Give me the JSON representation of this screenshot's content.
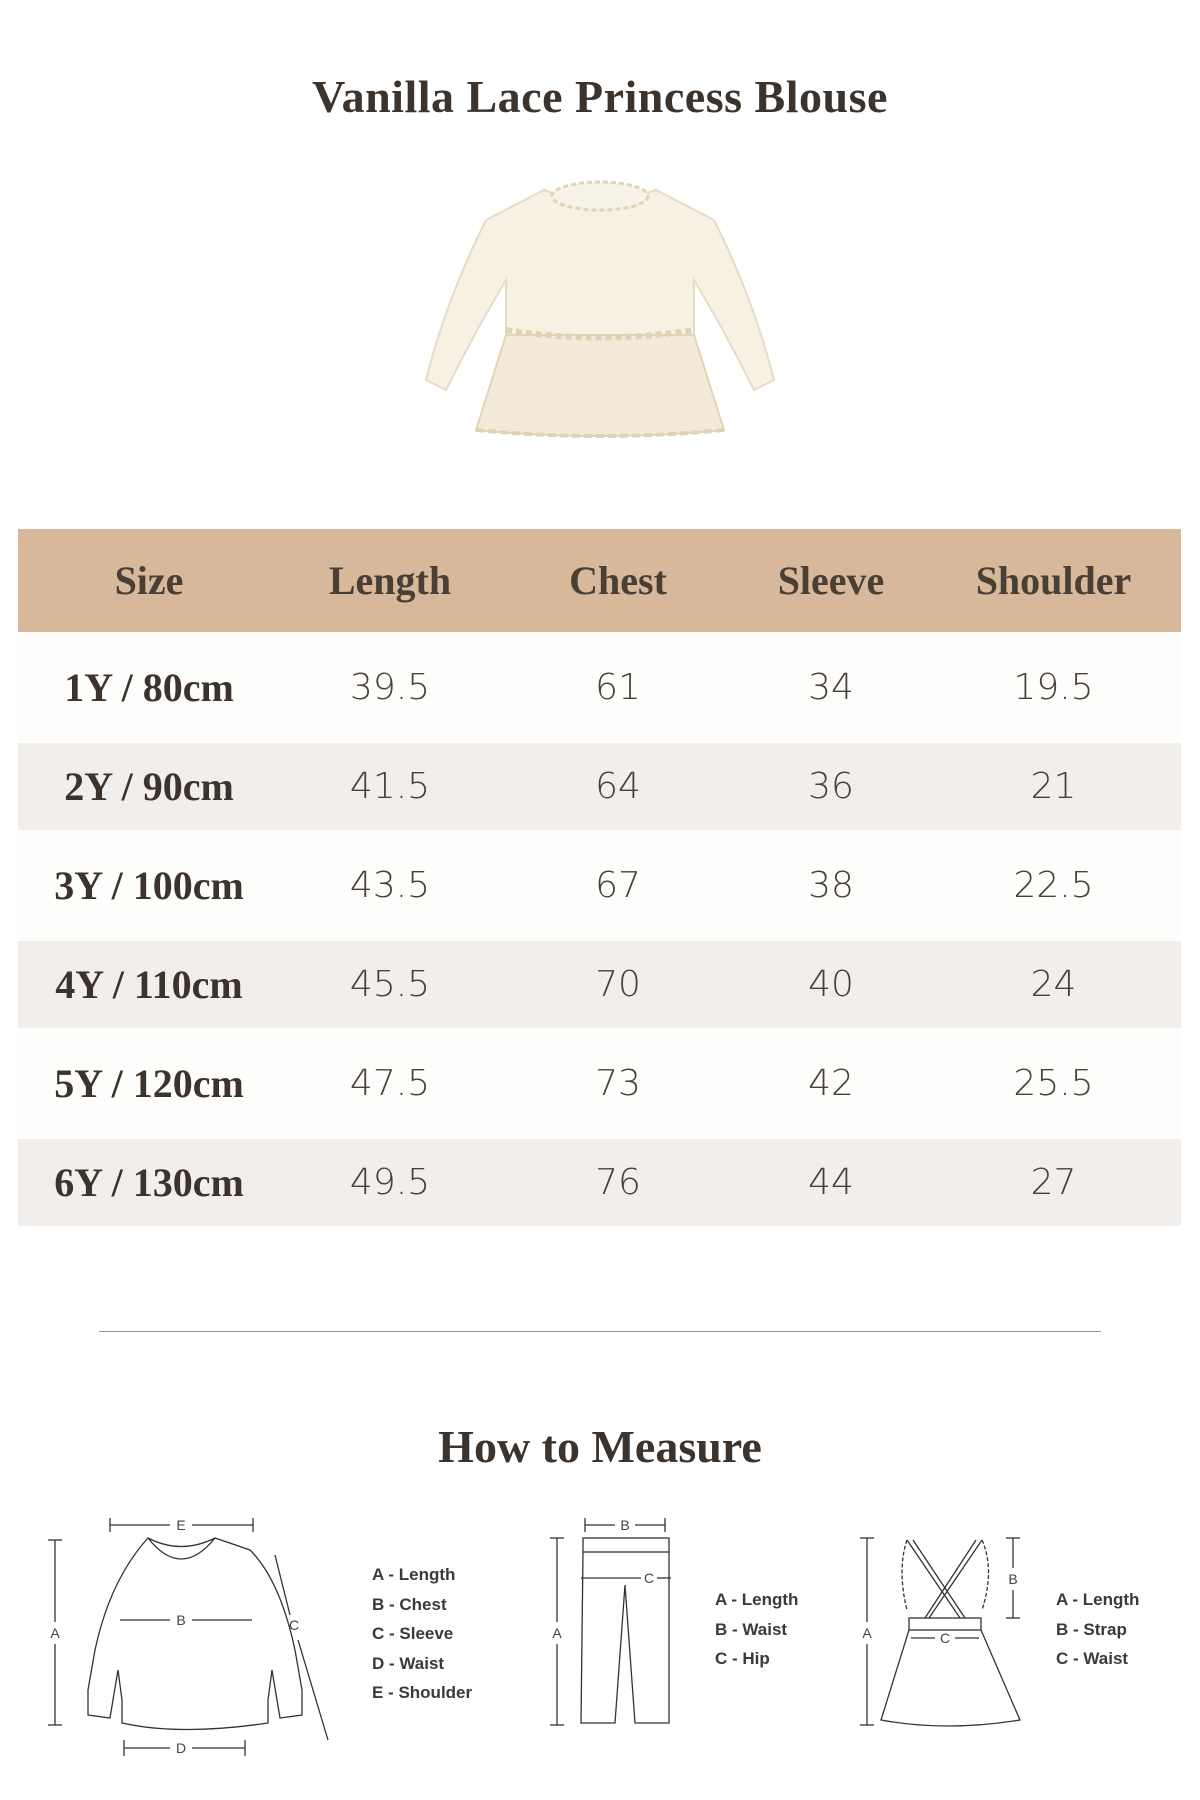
{
  "title": "Vanilla Lace Princess Blouse",
  "colors": {
    "header_bg": "#d7b89b",
    "row_alt": "#f1eeeb",
    "text": "#3b332c"
  },
  "table": {
    "headers": [
      "Size",
      "Length",
      "Chest",
      "Sleeve",
      "Shoulder"
    ],
    "rows": [
      [
        "1Y / 80cm",
        "39.5",
        "61",
        "34",
        "19.5"
      ],
      [
        "2Y / 90cm",
        "41.5",
        "64",
        "36",
        "21"
      ],
      [
        "3Y / 100cm",
        "43.5",
        "67",
        "38",
        "22.5"
      ],
      [
        "4Y / 110cm",
        "45.5",
        "70",
        "40",
        "24"
      ],
      [
        "5Y / 120cm",
        "47.5",
        "73",
        "42",
        "25.5"
      ],
      [
        "6Y / 130cm",
        "49.5",
        "76",
        "44",
        "27"
      ]
    ]
  },
  "how_to_measure": {
    "title": "How to Measure",
    "top": {
      "labels": [
        "A",
        "B",
        "C",
        "D",
        "E"
      ],
      "legend": [
        "A - Length",
        "B - Chest",
        "C - Sleeve",
        "D - Waist",
        "E - Shoulder"
      ]
    },
    "pants": {
      "labels": [
        "A",
        "B",
        "C"
      ],
      "legend": [
        "A - Length",
        "B - Waist",
        "C - Hip"
      ]
    },
    "skirt": {
      "labels": [
        "A",
        "B",
        "C"
      ],
      "legend": [
        "A - Length",
        "B - Strap",
        "C - Waist"
      ]
    }
  }
}
